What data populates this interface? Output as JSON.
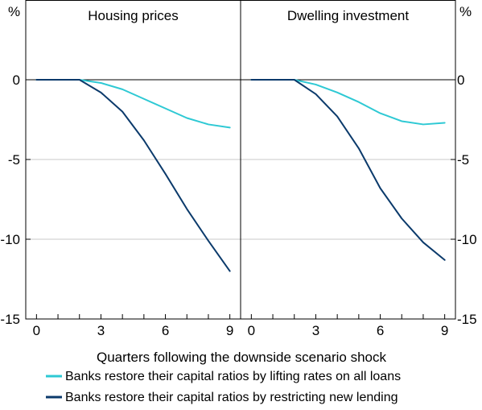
{
  "chart_data": {
    "type": "line",
    "xlabel": "Quarters following the downside scenario shock",
    "y_unit_label": "%",
    "x_ticks": [
      0,
      3,
      6,
      9
    ],
    "xlim": [
      -0.5,
      9.5
    ],
    "y_ticks": [
      0,
      -5,
      -10,
      -15
    ],
    "ylim": [
      -15,
      5
    ],
    "grid": true,
    "legend_position": "bottom",
    "series_styles": [
      {
        "color": "#2ec9d4"
      },
      {
        "color": "#0b3a6b"
      }
    ],
    "legend": [
      "Banks restore their capital ratios by lifting rates on all loans",
      "Banks restore their capital ratios by restricting new lending"
    ],
    "panels": [
      {
        "title": "Housing prices",
        "x": [
          0,
          1,
          2,
          3,
          4,
          5,
          6,
          7,
          8,
          9
        ],
        "series": [
          {
            "values": [
              0,
              0,
              0,
              -0.2,
              -0.6,
              -1.2,
              -1.8,
              -2.4,
              -2.8,
              -3.0
            ]
          },
          {
            "values": [
              0,
              0,
              0,
              -0.8,
              -2.0,
              -3.8,
              -5.9,
              -8.1,
              -10.1,
              -12.0
            ]
          }
        ]
      },
      {
        "title": "Dwelling investment",
        "x": [
          0,
          1,
          2,
          3,
          4,
          5,
          6,
          7,
          8,
          9
        ],
        "series": [
          {
            "values": [
              0,
              0,
              0,
              -0.3,
              -0.8,
              -1.4,
              -2.1,
              -2.6,
              -2.8,
              -2.7
            ]
          },
          {
            "values": [
              0,
              0,
              0,
              -0.9,
              -2.3,
              -4.3,
              -6.8,
              -8.7,
              -10.2,
              -11.3
            ]
          }
        ]
      }
    ]
  }
}
